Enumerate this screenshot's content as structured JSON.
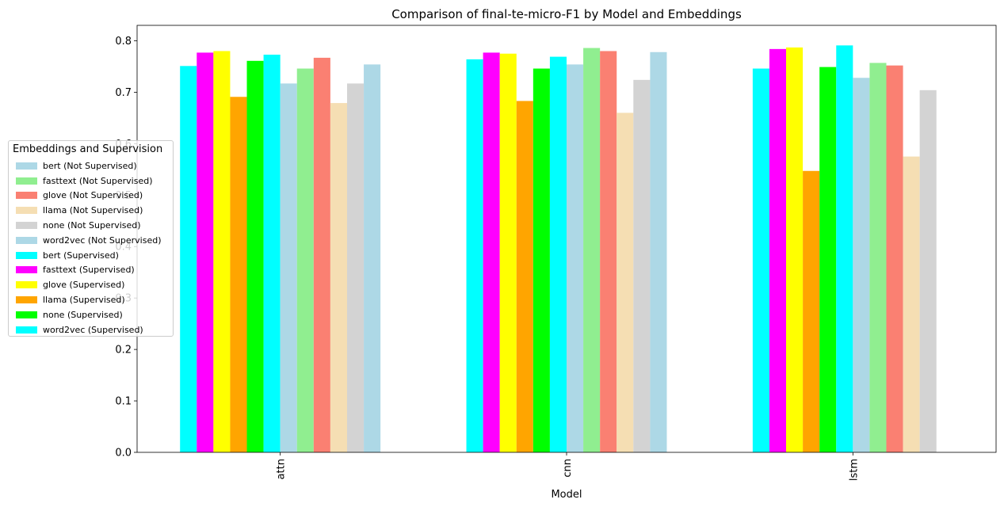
{
  "chart_data": {
    "type": "bar",
    "title": "Comparison of final-te-micro-F1 by Model and Embeddings",
    "xlabel": "Model",
    "ylabel": "",
    "categories": [
      "attn",
      "cnn",
      "lstm"
    ],
    "ylim": [
      0,
      0.83
    ],
    "yticks": [
      0.0,
      0.1,
      0.2,
      0.3,
      0.4,
      0.5,
      0.6,
      0.7,
      0.8
    ],
    "ytick_labels": [
      "0.0",
      "0.1",
      "0.2",
      "0.3",
      "0.4",
      "0.5",
      "0.6",
      "0.7",
      "0.8"
    ],
    "grid": false,
    "legend": {
      "title": "Embeddings and Supervision",
      "placement": "left",
      "entries": [
        {
          "label": "bert (Not Supervised)",
          "color": "#add8e6"
        },
        {
          "label": "fasttext (Not Supervised)",
          "color": "#90ee90"
        },
        {
          "label": "glove (Not Supervised)",
          "color": "#fa8072"
        },
        {
          "label": "llama (Not Supervised)",
          "color": "#f5deb3"
        },
        {
          "label": "none (Not Supervised)",
          "color": "#d3d3d3"
        },
        {
          "label": "word2vec (Not Supervised)",
          "color": "#add8e6"
        },
        {
          "label": "bert (Supervised)",
          "color": "#00ffff"
        },
        {
          "label": "fasttext (Supervised)",
          "color": "#ff00ff"
        },
        {
          "label": "glove (Supervised)",
          "color": "#ffff00"
        },
        {
          "label": "llama (Supervised)",
          "color": "#ffa500"
        },
        {
          "label": "none (Supervised)",
          "color": "#00ff00"
        },
        {
          "label": "word2vec (Supervised)",
          "color": "#00ffff"
        }
      ]
    },
    "bar_order_colors": [
      "#00ffff",
      "#ff00ff",
      "#ffff00",
      "#ffa500",
      "#00ff00",
      "#00ffff",
      "#add8e6",
      "#90ee90",
      "#fa8072",
      "#f5deb3",
      "#d3d3d3",
      "#add8e6"
    ],
    "values": {
      "attn": [
        0.751,
        0.777,
        0.78,
        0.691,
        0.761,
        0.773,
        0.717,
        0.746,
        0.767,
        0.679,
        0.717,
        0.754
      ],
      "cnn": [
        0.764,
        0.777,
        0.775,
        0.683,
        0.746,
        0.769,
        0.754,
        0.786,
        0.78,
        0.66,
        0.724,
        0.778
      ],
      "lstm": [
        0.746,
        0.784,
        0.787,
        0.547,
        0.749,
        0.791,
        0.728,
        0.757,
        0.752,
        0.575,
        0.704,
        0.0
      ]
    }
  }
}
